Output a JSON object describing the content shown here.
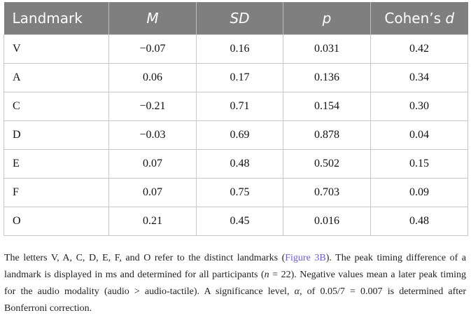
{
  "table": {
    "headers": [
      "Landmark",
      "M",
      "SD",
      "p",
      "Cohen’s d"
    ],
    "rows": [
      [
        "V",
        "−0.07",
        "0.16",
        "0.031",
        "0.42"
      ],
      [
        "A",
        "0.06",
        "0.17",
        "0.136",
        "0.34"
      ],
      [
        "C",
        "−0.21",
        "0.71",
        "0.154",
        "0.30"
      ],
      [
        "D",
        "−0.03",
        "0.69",
        "0.878",
        "0.04"
      ],
      [
        "E",
        "0.07",
        "0.48",
        "0.502",
        "0.15"
      ],
      [
        "F",
        "0.07",
        "0.75",
        "0.703",
        "0.09"
      ],
      [
        "O",
        "0.21",
        "0.45",
        "0.016",
        "0.48"
      ]
    ]
  },
  "caption": {
    "p1": "The letters V, A, C, D, E, F, and O refer to the distinct landmarks (",
    "ref": "Figure 3B",
    "p2": "). The peak timing difference of a landmark is displayed in ms and determined for all participants (",
    "n_var": "n",
    "p3": " = 22). Negative values mean a later peak timing for the audio modality (audio > audio-tactile). A significance level, ",
    "alpha": "α",
    "p4": ", of 0.05/7 = 0.007 is determined after Bonferroni correction."
  }
}
